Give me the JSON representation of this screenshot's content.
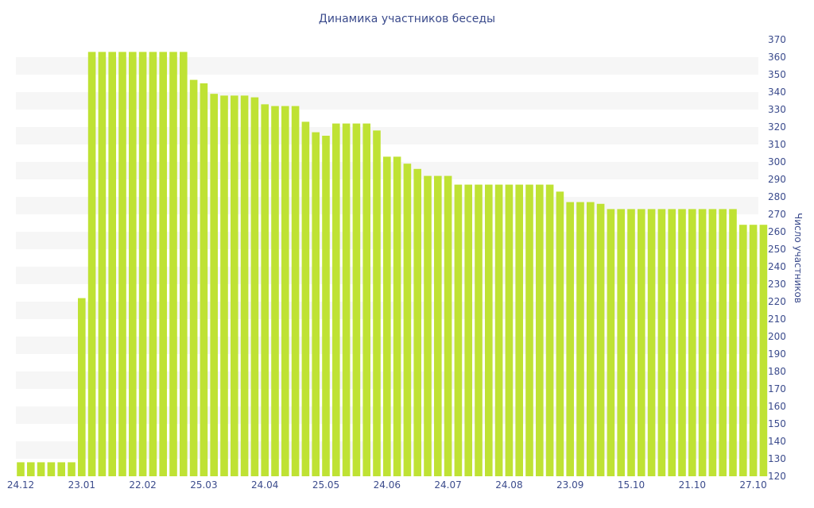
{
  "chart_data": {
    "type": "bar",
    "title": "Динамика участников беседы",
    "xlabel": "",
    "ylabel": "Число участников",
    "ylim": [
      120,
      370
    ],
    "y_axis_position": "right",
    "y_ticks": [
      120,
      130,
      140,
      150,
      160,
      170,
      180,
      190,
      200,
      210,
      220,
      230,
      240,
      250,
      260,
      270,
      280,
      290,
      300,
      310,
      320,
      330,
      340,
      350,
      360,
      370
    ],
    "grid": "alternating horizontal bands",
    "bar_color": "#bfe234",
    "band_color": "#f6f6f6",
    "text_color": "#3b4b8c",
    "x_tick_labels": [
      {
        "label": "24.12",
        "index": 0
      },
      {
        "label": "23.01",
        "index": 6
      },
      {
        "label": "22.02",
        "index": 12
      },
      {
        "label": "25.03",
        "index": 18
      },
      {
        "label": "24.04",
        "index": 24
      },
      {
        "label": "25.05",
        "index": 30
      },
      {
        "label": "24.06",
        "index": 36
      },
      {
        "label": "24.07",
        "index": 42
      },
      {
        "label": "24.08",
        "index": 48
      },
      {
        "label": "23.09",
        "index": 54
      },
      {
        "label": "15.10",
        "index": 60
      },
      {
        "label": "21.10",
        "index": 66
      },
      {
        "label": "27.10",
        "index": 72
      }
    ],
    "values": [
      128,
      128,
      128,
      128,
      128,
      128,
      222,
      363,
      363,
      363,
      363,
      363,
      363,
      363,
      363,
      363,
      363,
      347,
      345,
      339,
      338,
      338,
      338,
      337,
      333,
      332,
      332,
      332,
      323,
      317,
      315,
      322,
      322,
      322,
      322,
      318,
      303,
      303,
      299,
      296,
      292,
      292,
      292,
      287,
      287,
      287,
      287,
      287,
      287,
      287,
      287,
      287,
      287,
      283,
      277,
      277,
      277,
      276,
      273,
      273,
      273,
      273,
      273,
      273,
      273,
      273,
      273,
      273,
      273,
      273,
      273,
      264,
      264,
      264
    ]
  }
}
